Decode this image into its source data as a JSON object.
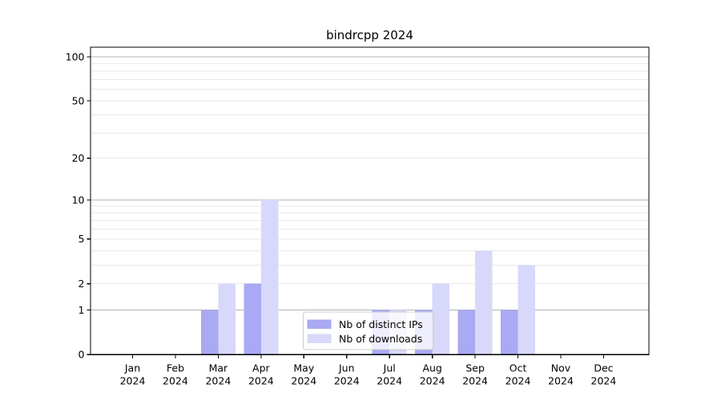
{
  "figure": {
    "background": "#ffffff"
  },
  "chart_data": {
    "type": "bar",
    "title": "bindrcpp 2024",
    "xlabel": "",
    "ylabel": "",
    "x_axis": {
      "months": [
        "Jan",
        "Feb",
        "Mar",
        "Apr",
        "May",
        "Jun",
        "Jul",
        "Aug",
        "Sep",
        "Oct",
        "Nov",
        "Dec"
      ],
      "year": "2024"
    },
    "y_axis": {
      "scale": "log1p",
      "ticks": [
        100,
        50,
        20,
        10,
        5,
        2,
        1,
        0
      ],
      "range": [
        0,
        116
      ]
    },
    "grid": {
      "on": true,
      "major_lines": [
        1,
        10,
        100
      ],
      "minor_lines": [
        2,
        3,
        4,
        5,
        6,
        7,
        8,
        9,
        20,
        30,
        40,
        50,
        60,
        70,
        80,
        90
      ]
    },
    "series": [
      {
        "name": "Nb of distinct IPs",
        "color": "#a9a9f4",
        "values": [
          0,
          0,
          1,
          2,
          0,
          0,
          1,
          1,
          1,
          1,
          0,
          0
        ]
      },
      {
        "name": "Nb of downloads",
        "color": "#d8d8fa",
        "values": [
          0,
          0,
          2,
          10,
          0,
          0,
          1,
          2,
          4,
          3,
          0,
          0
        ]
      }
    ],
    "legend": {
      "position": "lower center",
      "entries": [
        "Nb of distinct IPs",
        "Nb of downloads"
      ]
    }
  },
  "colors": {
    "grid_major": "#b3b3b3",
    "grid_minor": "#e9e9e9",
    "spine": "#000000",
    "text": "#000000",
    "legend_border": "#cccccc",
    "legend_bg": "#ffffff"
  }
}
